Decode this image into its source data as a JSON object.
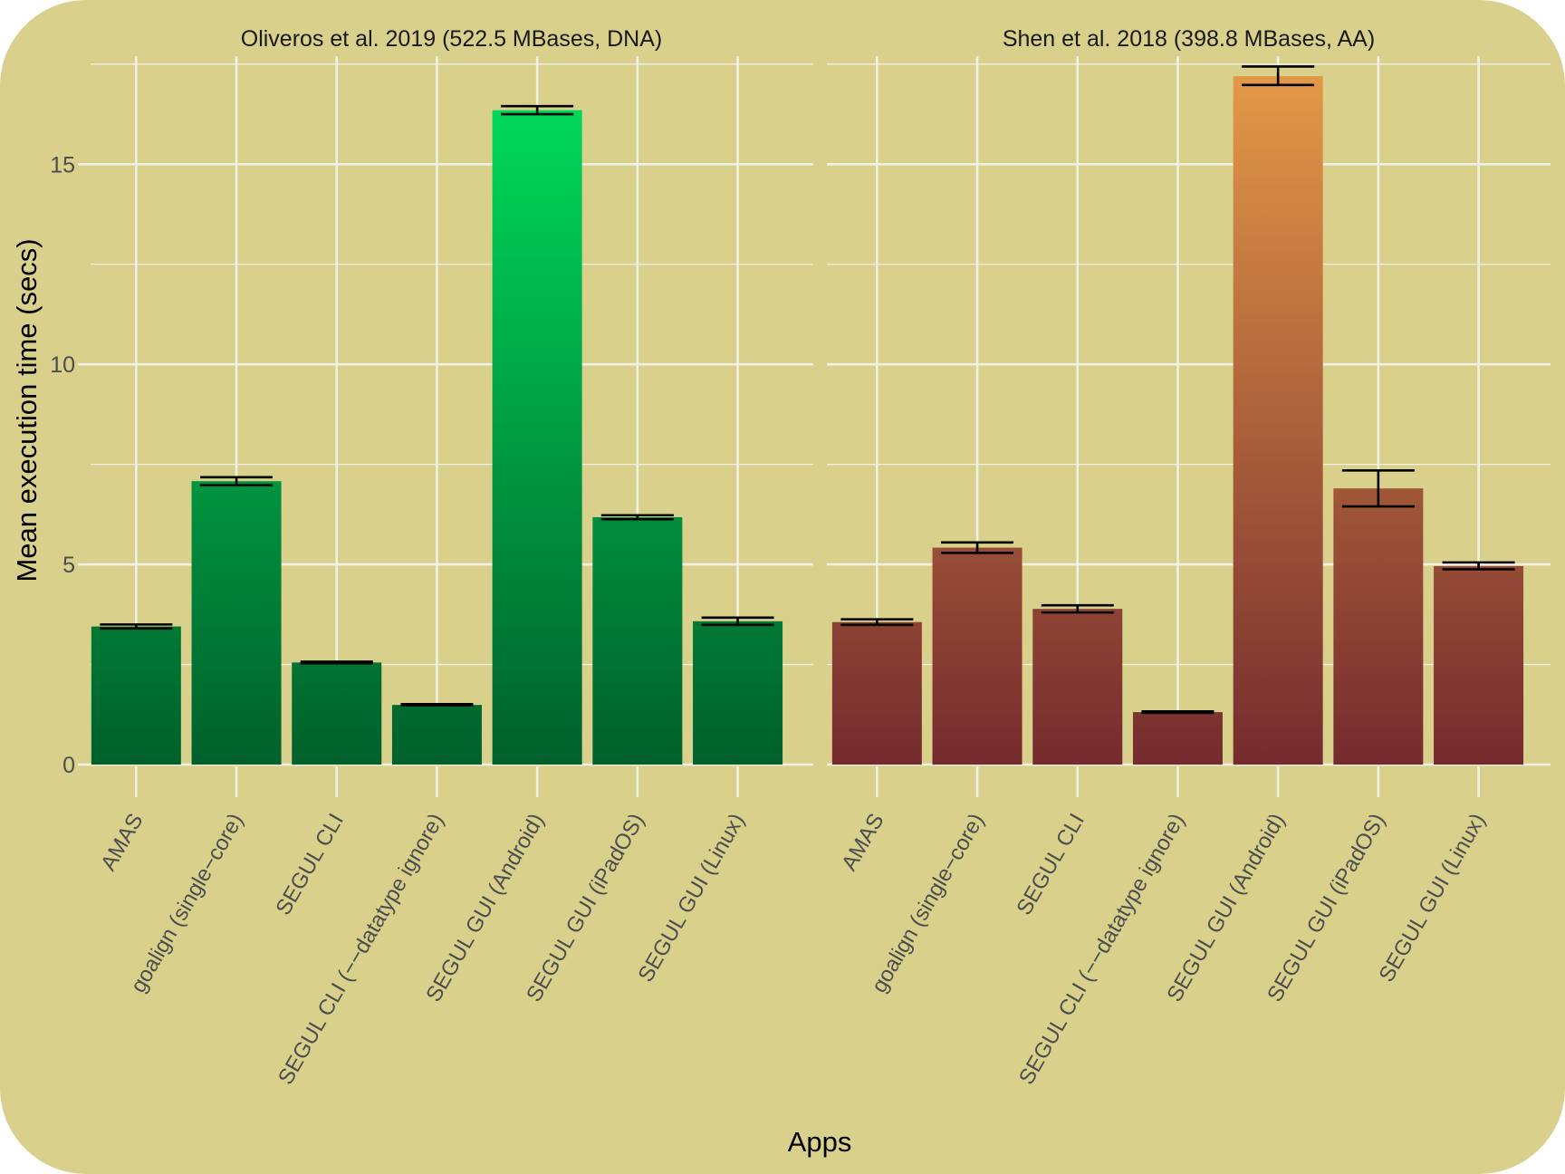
{
  "colors": {
    "background": "#d9d08c",
    "grid": "#f2f0e4",
    "panel1_top": "#00e25e",
    "panel1_bottom": "#00602b",
    "panel2_top": "#e69c48",
    "panel2_bottom": "#752b2e",
    "errorbar": "#000000"
  },
  "chart_data": {
    "type": "bar",
    "xlabel": "Apps",
    "ylabel": "Mean execution time (secs)",
    "ylim": [
      0,
      17.7
    ],
    "yticks": [
      0,
      5,
      10,
      15
    ],
    "grid": true,
    "legend": "none",
    "categories": [
      "AMAS",
      "goalign (single−core)",
      "SEGUL CLI",
      "SEGUL CLI (−−datatype ignore)",
      "SEGUL GUI (Android)",
      "SEGUL GUI (iPadOS)",
      "SEGUL GUI (Linux)"
    ],
    "panels": [
      {
        "title": "Oliveros et al. 2019 (522.5 MBases, DNA)",
        "values": [
          3.45,
          7.08,
          2.55,
          1.49,
          16.35,
          6.18,
          3.58
        ],
        "error_low": [
          3.4,
          6.98,
          2.53,
          1.48,
          16.25,
          6.13,
          3.49
        ],
        "error_high": [
          3.5,
          7.18,
          2.57,
          1.51,
          16.45,
          6.23,
          3.67
        ]
      },
      {
        "title": "Shen et al. 2018 (398.8 MBases, AA)",
        "values": [
          3.56,
          5.42,
          3.89,
          1.31,
          17.2,
          6.9,
          4.96
        ],
        "error_low": [
          3.49,
          5.29,
          3.8,
          1.29,
          16.98,
          6.45,
          4.88
        ],
        "error_high": [
          3.63,
          5.55,
          3.98,
          1.33,
          17.44,
          7.35,
          5.05
        ]
      }
    ]
  }
}
